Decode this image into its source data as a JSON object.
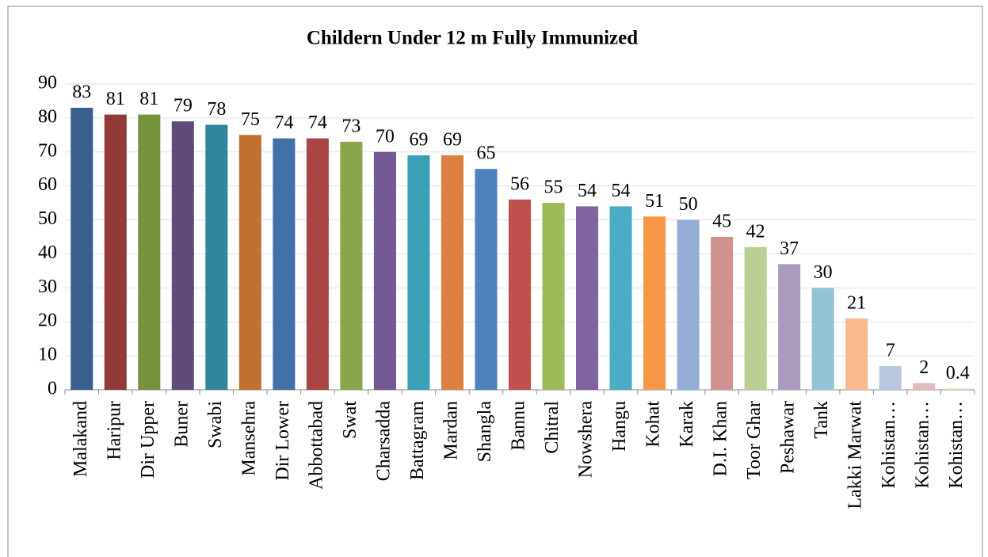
{
  "chart_data": {
    "type": "bar",
    "title": "Childern Under 12 m Fully Immunized",
    "categories": [
      "Malakand",
      "Haripur",
      "Dir Upper",
      "Buner",
      "Swabi",
      "Mansehra",
      "Dir Lower",
      "Abbottabad",
      "Swat",
      "Charsadda",
      "Battagram",
      "Mardan",
      "Shangla",
      "Bannu",
      "Chitral",
      "Nowshera",
      "Hangu",
      "Kohat",
      "Karak",
      "D.I. Khan",
      "Toor Ghar",
      "Peshawar",
      "Tank",
      "Lakki Marwat",
      "Kohistan…",
      "Kohistan…",
      "Kohistan…"
    ],
    "values": [
      83,
      81,
      81,
      79,
      78,
      75,
      74,
      74,
      73,
      70,
      69,
      69,
      65,
      56,
      55,
      54,
      54,
      51,
      50,
      45,
      42,
      37,
      30,
      21,
      7,
      2,
      0.4
    ],
    "colors": [
      "#3a5f8f",
      "#923a38",
      "#76923c",
      "#5f4a7a",
      "#31859c",
      "#c0712f",
      "#4470a8",
      "#a94442",
      "#8aa64b",
      "#735893",
      "#3aa0b8",
      "#db8040",
      "#4f81bd",
      "#c0504d",
      "#9bbb59",
      "#8064a2",
      "#4bacc6",
      "#f79646",
      "#95acd4",
      "#d09291",
      "#b9cf93",
      "#a99bbd",
      "#92c4d6",
      "#f9b98d",
      "#b8c6e0",
      "#e4baba",
      "#d6e4bb"
    ],
    "ylim": [
      0,
      90
    ],
    "yticks": [
      0,
      10,
      20,
      30,
      40,
      50,
      60,
      70,
      80,
      90
    ],
    "grid": true
  }
}
